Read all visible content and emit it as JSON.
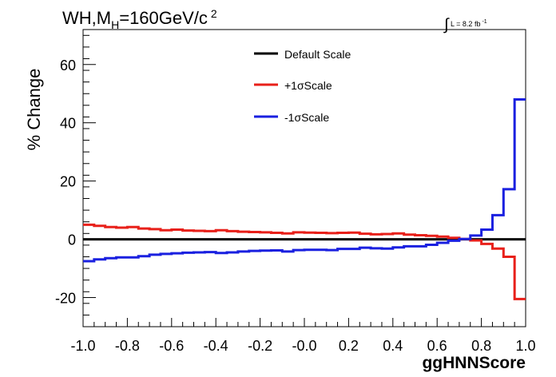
{
  "title": {
    "prefix": "WH,M",
    "subscript": "H",
    "suffix": "=160GeV/c",
    "superscript": "2"
  },
  "lumi": {
    "integral": "∫",
    "text": "L = 8.2 fb",
    "superscript": "-1"
  },
  "colors": {
    "default": "#000000",
    "plus": "#e8201a",
    "minus": "#1a20e0",
    "axis": "#000000"
  },
  "chart_data": {
    "type": "line",
    "style": "step histogram",
    "xlabel": "ggHNNScore",
    "ylabel": "% Change",
    "xlim": [
      -1.0,
      1.0
    ],
    "ylim": [
      -30,
      72
    ],
    "xticks": [
      -1.0,
      -0.8,
      -0.6,
      -0.4,
      -0.2,
      0.0,
      0.2,
      0.4,
      0.6,
      0.8,
      1.0
    ],
    "xtick_labels": [
      "-1.0",
      "-0.8",
      "-0.6",
      "-0.4",
      "-0.2",
      "-0.0",
      "0.2",
      "0.4",
      "0.6",
      "0.8",
      "1.0"
    ],
    "yticks": [
      -20,
      0,
      20,
      40,
      60
    ],
    "ytick_labels": [
      "-20",
      "0",
      "20",
      "40",
      "60"
    ],
    "bin_edges": [
      -1.0,
      -0.95,
      -0.9,
      -0.85,
      -0.8,
      -0.75,
      -0.7,
      -0.65,
      -0.6,
      -0.55,
      -0.5,
      -0.45,
      -0.4,
      -0.35,
      -0.3,
      -0.25,
      -0.2,
      -0.15,
      -0.1,
      -0.05,
      0.0,
      0.05,
      0.1,
      0.15,
      0.2,
      0.25,
      0.3,
      0.35,
      0.4,
      0.45,
      0.5,
      0.55,
      0.6,
      0.65,
      0.7,
      0.75,
      0.8,
      0.85,
      0.9,
      0.95,
      1.0
    ],
    "legend_position": "top-center",
    "series": [
      {
        "name": "Default Scale",
        "color": "#000000",
        "values": [
          0,
          0,
          0,
          0,
          0,
          0,
          0,
          0,
          0,
          0,
          0,
          0,
          0,
          0,
          0,
          0,
          0,
          0,
          0,
          0,
          0,
          0,
          0,
          0,
          0,
          0,
          0,
          0,
          0,
          0,
          0,
          0,
          0,
          0,
          0,
          0,
          0,
          0,
          0,
          0
        ]
      },
      {
        "name": "+1σScale",
        "color": "#e8201a",
        "values": [
          5.0,
          4.6,
          4.2,
          4.0,
          4.2,
          3.7,
          3.5,
          3.1,
          3.3,
          3.0,
          2.9,
          2.8,
          3.1,
          2.8,
          2.6,
          2.5,
          2.4,
          2.2,
          2.0,
          2.4,
          2.3,
          2.2,
          2.1,
          2.2,
          2.3,
          1.9,
          1.7,
          1.8,
          2.0,
          1.6,
          1.4,
          1.2,
          0.9,
          0.5,
          0.1,
          -0.4,
          -1.6,
          -3.2,
          -6.0,
          -20.5
        ]
      },
      {
        "name": "-1σScale",
        "color": "#1a20e0",
        "values": [
          -7.5,
          -6.9,
          -6.5,
          -6.2,
          -6.2,
          -5.8,
          -5.3,
          -5.0,
          -4.8,
          -4.6,
          -4.5,
          -4.4,
          -4.7,
          -4.5,
          -4.2,
          -4.0,
          -3.9,
          -3.8,
          -4.2,
          -3.7,
          -3.6,
          -3.6,
          -3.7,
          -3.3,
          -3.3,
          -2.9,
          -3.1,
          -3.2,
          -2.8,
          -2.4,
          -2.4,
          -1.9,
          -1.2,
          -0.5,
          0.1,
          1.3,
          3.3,
          8.3,
          17.2,
          48.0
        ]
      }
    ]
  }
}
